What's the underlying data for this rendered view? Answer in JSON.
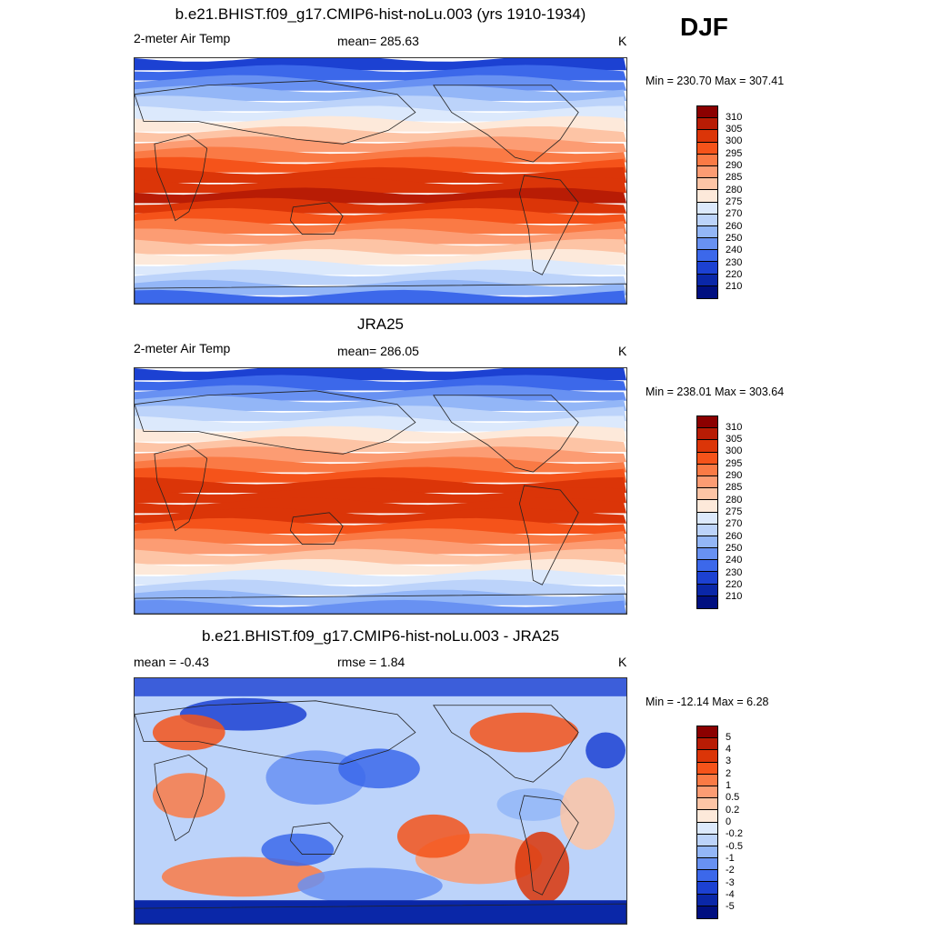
{
  "season": "DJF",
  "panels": [
    {
      "id": "model",
      "title": "b.e21.BHIST.f09_g17.CMIP6-hist-noLu.003 (yrs 1910-1934)",
      "left_label": "2-meter Air Temp",
      "center_label": "mean= 285.63",
      "units": "K",
      "minmax": "Min = 230.70 Max = 307.41",
      "field_type": "absolute"
    },
    {
      "id": "obs",
      "title": "JRA25",
      "left_label": "2-meter Air Temp",
      "center_label": "mean= 286.05",
      "units": "K",
      "minmax": "Min = 238.01 Max = 303.64",
      "field_type": "absolute"
    },
    {
      "id": "diff",
      "title": "b.e21.BHIST.f09_g17.CMIP6-hist-noLu.003 - JRA25",
      "left_label": "mean =  -0.43",
      "center_label": "rmse =   1.84",
      "units": "K",
      "minmax": "Min = -12.14 Max =   6.28",
      "field_type": "difference"
    }
  ],
  "colorbars": {
    "absolute": {
      "labels": [
        "310",
        "305",
        "300",
        "295",
        "290",
        "285",
        "280",
        "275",
        "270",
        "260",
        "250",
        "240",
        "230",
        "220",
        "210"
      ],
      "colors": [
        "#8b0000",
        "#b81c05",
        "#db3508",
        "#f5531a",
        "#fa7a45",
        "#fc9c73",
        "#fdc4a5",
        "#fde9da",
        "#dce9fc",
        "#bcd3fa",
        "#93b6f7",
        "#6891f2",
        "#3c68ea",
        "#1c41d2",
        "#0a27a8",
        "#000f80"
      ]
    },
    "difference": {
      "labels": [
        "5",
        "4",
        "3",
        "2",
        "1",
        "0.5",
        "0.2",
        "0",
        "-0.2",
        "-0.5",
        "-1",
        "-2",
        "-3",
        "-4",
        "-5"
      ],
      "colors": [
        "#8b0000",
        "#b81c05",
        "#db3508",
        "#f5531a",
        "#fa7a45",
        "#fc9c73",
        "#fdc4a5",
        "#fde9da",
        "#dce9fc",
        "#bcd3fa",
        "#93b6f7",
        "#6891f2",
        "#3c68ea",
        "#1c41d2",
        "#0a27a8",
        "#000f80"
      ]
    }
  }
}
